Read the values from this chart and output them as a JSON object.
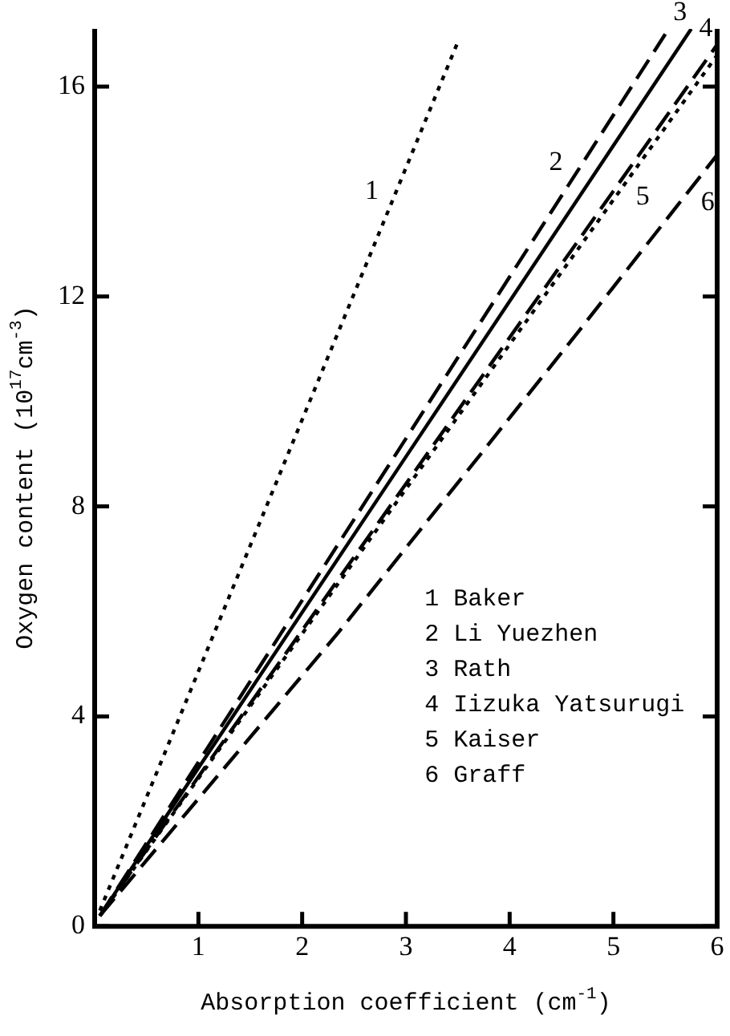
{
  "chart_data": {
    "type": "line",
    "xlabel": "Absorption coefficient (cm$^{-1}$)",
    "ylabel": "Oxygen content (10$^{17}$cm$^{-3}$)",
    "xlim": [
      0,
      6
    ],
    "xticks": [
      1,
      2,
      3,
      4,
      5,
      6
    ],
    "ylim": [
      0,
      17.1
    ],
    "yticks": [
      0,
      4,
      8,
      12,
      16
    ],
    "grid": false,
    "marker": "none",
    "series": [
      {
        "name": "1",
        "color": "#000000",
        "line_style": "dotted",
        "x": [
          0.05,
          3.49
        ],
        "values": [
          0.3,
          16.8
        ]
      },
      {
        "name": "2",
        "color": "#000000",
        "line_style": "dashed",
        "x": [
          0.05,
          5.5
        ],
        "values": [
          0.2,
          17.0
        ]
      },
      {
        "name": "3",
        "color": "#000000",
        "line_style": "solid",
        "x": [
          0.05,
          5.75
        ],
        "values": [
          0.2,
          17.1
        ]
      },
      {
        "name": "4",
        "color": "#000000",
        "line_style": "dashed",
        "x": [
          0.05,
          6
        ],
        "values": [
          0.2,
          16.8
        ]
      },
      {
        "name": "5",
        "color": "#000000",
        "line_style": "dotted",
        "x": [
          0.05,
          6
        ],
        "values": [
          0.2,
          16.6
        ]
      },
      {
        "name": "6",
        "color": "#000000",
        "line_style": "dashed",
        "x": [
          0.05,
          2.35,
          4.69,
          6
        ],
        "values": [
          0.2,
          5.6,
          11.4,
          14.7
        ]
      }
    ],
    "annotations": [
      "1 Baker",
      "2 Li Yuezhen",
      "3 Rath",
      "4 Iizuka Yatsurugi",
      "5 Kaiser",
      "6 Graff"
    ]
  }
}
